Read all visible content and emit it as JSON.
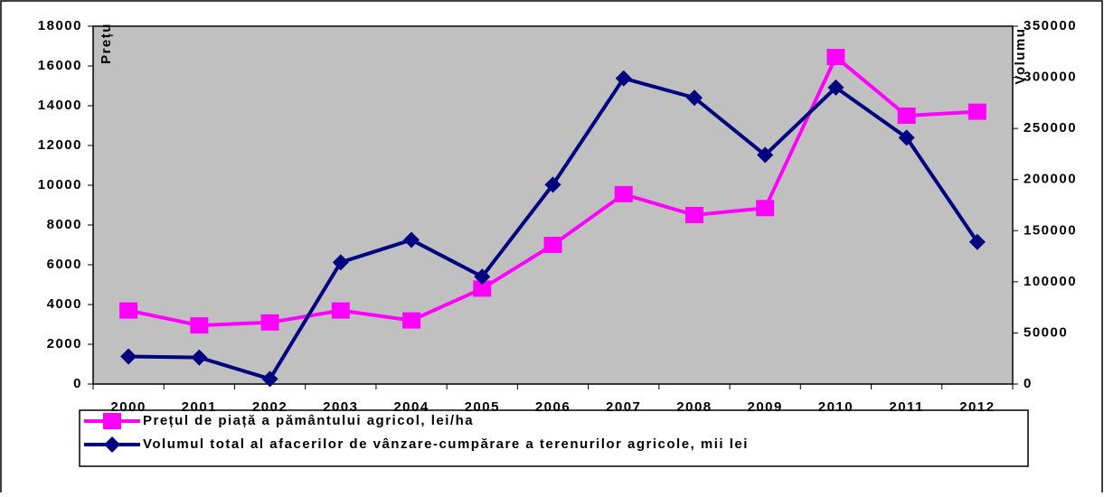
{
  "chart_data": {
    "type": "line",
    "ylabel": "Prețu",
    "y2label": "Volumu",
    "categories": [
      "2000",
      "2001",
      "2002",
      "2003",
      "2004",
      "2005",
      "2006",
      "2007",
      "2008",
      "2009",
      "2010",
      "2011",
      "2012"
    ],
    "series": [
      {
        "name": "Prețul de piață a pământului agricol, lei/ha",
        "color": "#ff00ff",
        "marker": "square",
        "values": [
          3700,
          2950,
          3100,
          3700,
          3200,
          4800,
          7000,
          9550,
          8500,
          8850,
          16450,
          13500,
          13700
        ]
      },
      {
        "name": "Volumul total al afacerilor de vânzare-cumpărare a terenurilor agricole, mii lei",
        "color": "#000080",
        "marker": "diamond",
        "axis": "y2",
        "values": [
          27000,
          26000,
          5000,
          119000,
          141000,
          105000,
          195000,
          299000,
          280000,
          224000,
          290000,
          241000,
          139000
        ]
      }
    ],
    "ylim": [
      0,
      18000
    ],
    "yticks": [
      0,
      2000,
      4000,
      6000,
      8000,
      10000,
      12000,
      14000,
      16000,
      18000
    ],
    "y2lim": [
      0,
      350000
    ],
    "y2ticks": [
      0,
      50000,
      100000,
      150000,
      200000,
      250000,
      300000,
      350000
    ],
    "background": "#c0c0c0",
    "legend": "bottom"
  }
}
